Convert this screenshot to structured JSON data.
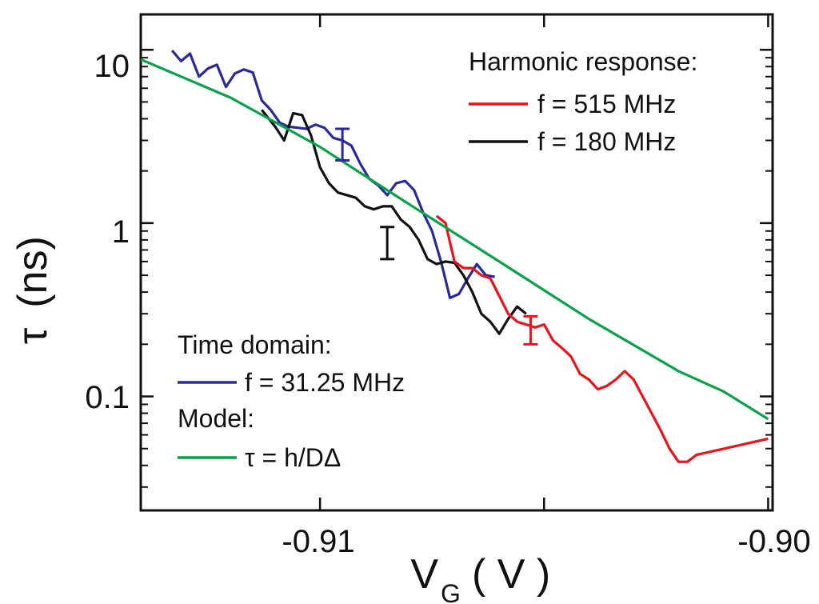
{
  "chart_data": {
    "type": "line",
    "xlabel_main": "V",
    "xlabel_sub": "G",
    "xlabel_unit": "( V )",
    "ylabel_sym": "τ",
    "ylabel_unit": "(ns)",
    "xlim": [
      -0.914,
      -0.8999
    ],
    "ylim": [
      0.022,
      16
    ],
    "y_scale": "log",
    "x_ticks": [
      {
        "value": -0.91,
        "label": "-0.91"
      },
      {
        "value": -0.905,
        "label": ""
      },
      {
        "value": -0.9,
        "label": "-0.90"
      }
    ],
    "y_ticks": [
      {
        "value": 10,
        "label": "10"
      },
      {
        "value": 1,
        "label": "1"
      },
      {
        "value": 0.1,
        "label": "0.1"
      }
    ],
    "legend_top": {
      "heading": "Harmonic response:",
      "entries": [
        {
          "label": "f = 515 MHz",
          "color": "#e8141c"
        },
        {
          "label": "f = 180 MHz",
          "color": "#111111"
        }
      ]
    },
    "legend_bottom": {
      "heading1": "Time domain:",
      "entry1": {
        "label": "f = 31.25 MHz",
        "color": "#2a2a9a"
      },
      "heading2": "Model:",
      "entry2": {
        "label": "τ = h/DΔ",
        "color": "#0aa14a"
      }
    },
    "series": [
      {
        "name": "f = 31.25 MHz",
        "color": "#2a2a9a",
        "points": [
          [
            -0.9133,
            9.9
          ],
          [
            -0.9131,
            8.6
          ],
          [
            -0.9129,
            9.5
          ],
          [
            -0.9127,
            7.0
          ],
          [
            -0.9125,
            7.8
          ],
          [
            -0.9123,
            8.2
          ],
          [
            -0.9121,
            6.1
          ],
          [
            -0.9119,
            7.3
          ],
          [
            -0.9117,
            7.7
          ],
          [
            -0.9115,
            7.4
          ],
          [
            -0.9113,
            5.1
          ],
          [
            -0.9111,
            4.5
          ],
          [
            -0.9109,
            3.8
          ],
          [
            -0.9107,
            3.6
          ],
          [
            -0.9105,
            3.55
          ],
          [
            -0.9103,
            3.5
          ],
          [
            -0.9101,
            3.7
          ],
          [
            -0.9099,
            3.55
          ],
          [
            -0.9097,
            3.1
          ],
          [
            -0.9095,
            3.0
          ],
          [
            -0.9093,
            2.8
          ],
          [
            -0.9091,
            2.2
          ],
          [
            -0.9089,
            1.8
          ],
          [
            -0.9087,
            1.65
          ],
          [
            -0.9085,
            1.45
          ],
          [
            -0.9083,
            1.7
          ],
          [
            -0.9081,
            1.75
          ],
          [
            -0.9079,
            1.55
          ],
          [
            -0.9077,
            1.15
          ],
          [
            -0.9075,
            0.9
          ],
          [
            -0.9073,
            0.6
          ],
          [
            -0.9071,
            0.37
          ],
          [
            -0.9069,
            0.39
          ],
          [
            -0.9067,
            0.48
          ],
          [
            -0.9065,
            0.58
          ],
          [
            -0.9063,
            0.5
          ],
          [
            -0.9061,
            0.49
          ]
        ]
      },
      {
        "name": "f = 180 MHz",
        "color": "#111111",
        "points": [
          [
            -0.9113,
            4.5
          ],
          [
            -0.911,
            3.6
          ],
          [
            -0.9108,
            3.0
          ],
          [
            -0.9106,
            4.3
          ],
          [
            -0.9104,
            4.2
          ],
          [
            -0.9102,
            3.2
          ],
          [
            -0.91,
            2.1
          ],
          [
            -0.9098,
            1.7
          ],
          [
            -0.9096,
            1.5
          ],
          [
            -0.9094,
            1.45
          ],
          [
            -0.9092,
            1.4
          ],
          [
            -0.909,
            1.25
          ],
          [
            -0.9088,
            1.2
          ],
          [
            -0.9086,
            1.25
          ],
          [
            -0.9084,
            1.25
          ],
          [
            -0.9082,
            1.05
          ],
          [
            -0.908,
            0.95
          ],
          [
            -0.9078,
            0.8
          ],
          [
            -0.9076,
            0.62
          ],
          [
            -0.9074,
            0.58
          ],
          [
            -0.9072,
            0.6
          ],
          [
            -0.907,
            0.59
          ],
          [
            -0.9068,
            0.5
          ],
          [
            -0.9066,
            0.4
          ],
          [
            -0.9064,
            0.3
          ],
          [
            -0.9062,
            0.27
          ],
          [
            -0.906,
            0.23
          ],
          [
            -0.9058,
            0.28
          ],
          [
            -0.9056,
            0.33
          ],
          [
            -0.9054,
            0.3
          ]
        ]
      },
      {
        "name": "f = 515 MHz",
        "color": "#e8141c",
        "points": [
          [
            -0.9074,
            1.1
          ],
          [
            -0.9072,
            1.0
          ],
          [
            -0.907,
            0.6
          ],
          [
            -0.9068,
            0.55
          ],
          [
            -0.9066,
            0.55
          ],
          [
            -0.9064,
            0.5
          ],
          [
            -0.9062,
            0.48
          ],
          [
            -0.906,
            0.38
          ],
          [
            -0.9058,
            0.3
          ],
          [
            -0.9056,
            0.27
          ],
          [
            -0.9054,
            0.26
          ],
          [
            -0.9052,
            0.25
          ],
          [
            -0.905,
            0.26
          ],
          [
            -0.9048,
            0.21
          ],
          [
            -0.9046,
            0.19
          ],
          [
            -0.9044,
            0.17
          ],
          [
            -0.9042,
            0.135
          ],
          [
            -0.904,
            0.125
          ],
          [
            -0.9038,
            0.11
          ],
          [
            -0.9036,
            0.115
          ],
          [
            -0.9034,
            0.125
          ],
          [
            -0.9032,
            0.14
          ],
          [
            -0.903,
            0.125
          ],
          [
            -0.9028,
            0.1
          ],
          [
            -0.9026,
            0.08
          ],
          [
            -0.9024,
            0.064
          ],
          [
            -0.9022,
            0.05
          ],
          [
            -0.902,
            0.042
          ],
          [
            -0.9018,
            0.042
          ],
          [
            -0.9016,
            0.046
          ],
          [
            -0.9,
            0.057
          ]
        ]
      },
      {
        "name": "τ = h/DΔ",
        "color": "#0aa14a",
        "points": [
          [
            -0.914,
            8.8
          ],
          [
            -0.912,
            5.3
          ],
          [
            -0.91,
            2.75
          ],
          [
            -0.908,
            1.28
          ],
          [
            -0.906,
            0.6
          ],
          [
            -0.904,
            0.28
          ],
          [
            -0.902,
            0.14
          ],
          [
            -0.901,
            0.107
          ],
          [
            -0.9,
            0.074
          ]
        ]
      }
    ],
    "error_bars": [
      {
        "x": -0.9095,
        "low": 2.3,
        "high": 3.5,
        "color": "#2a2a9a"
      },
      {
        "x": -0.9085,
        "low": 0.62,
        "high": 0.95,
        "color": "#111111"
      },
      {
        "x": -0.9053,
        "low": 0.2,
        "high": 0.29,
        "color": "#e8141c"
      }
    ]
  }
}
